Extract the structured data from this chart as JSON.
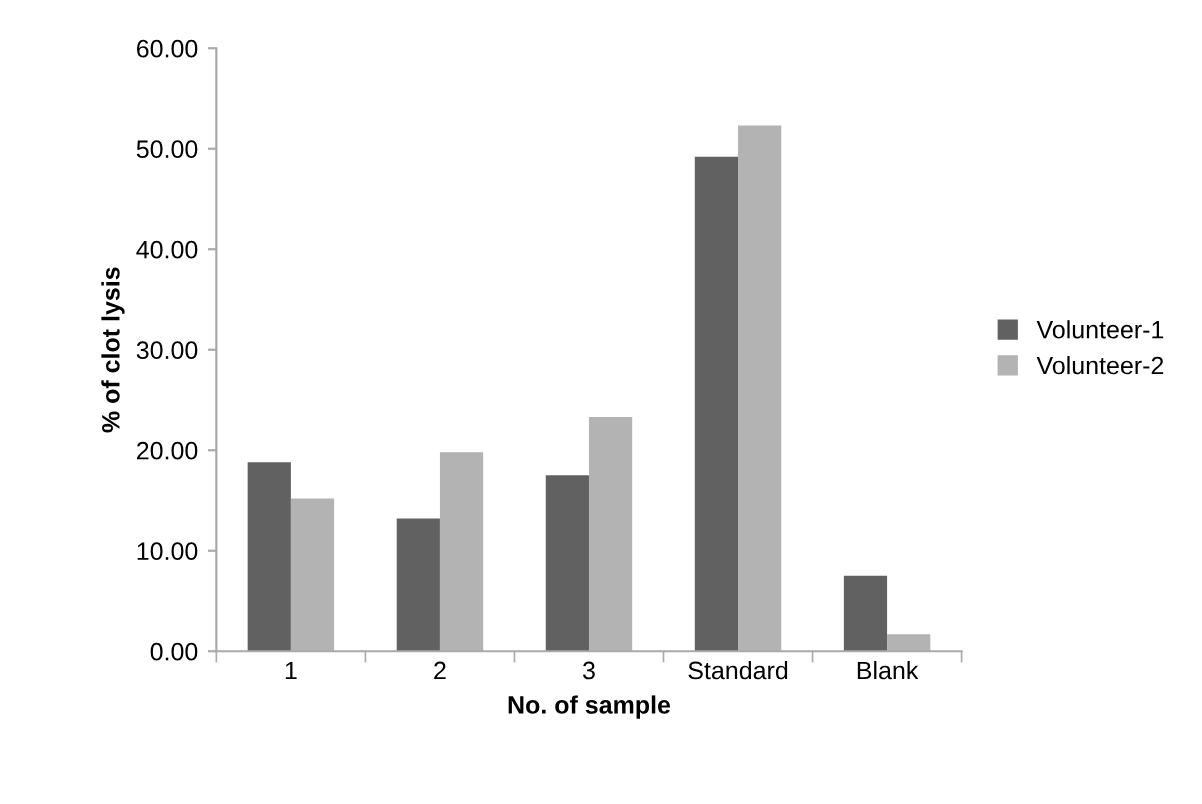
{
  "chart_data": {
    "type": "bar",
    "xlabel": "No. of sample",
    "ylabel": "% of clot lysis",
    "categories": [
      "1",
      "2",
      "3",
      "Standard",
      "Blank"
    ],
    "series": [
      {
        "name": "Volunteer-1",
        "color": "#616161",
        "values": [
          18.8,
          13.2,
          17.5,
          49.2,
          7.5
        ]
      },
      {
        "name": "Volunteer-2",
        "color": "#b3b3b3",
        "values": [
          15.2,
          19.8,
          23.3,
          52.3,
          1.7
        ]
      }
    ],
    "ylim": [
      0,
      60
    ],
    "yticks": [
      {
        "value": 0,
        "label": "0.00"
      },
      {
        "value": 10,
        "label": "10.00"
      },
      {
        "value": 20,
        "label": "20.00"
      },
      {
        "value": 30,
        "label": "30.00"
      },
      {
        "value": 40,
        "label": "40.00"
      },
      {
        "value": 50,
        "label": "50.00"
      },
      {
        "value": 60,
        "label": "60.00"
      }
    ],
    "grid": false,
    "legend": "right"
  }
}
